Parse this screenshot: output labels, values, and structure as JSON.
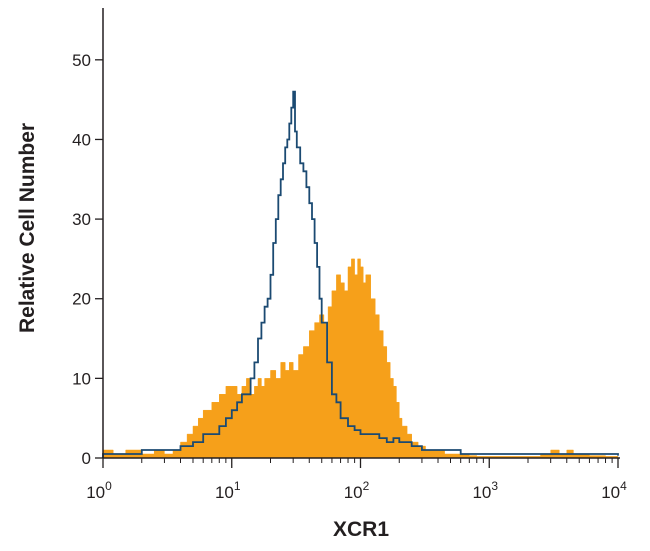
{
  "chart_data": {
    "type": "area",
    "xlabel": "XCR1",
    "ylabel": "Relative Cell Number",
    "x_scale": "log",
    "xlim": [
      1,
      10000
    ],
    "ylim": [
      0,
      55
    ],
    "x_ticks": [
      1,
      10,
      100,
      1000,
      10000
    ],
    "x_tick_labels": [
      {
        "base": "10",
        "exp": "0"
      },
      {
        "base": "10",
        "exp": "1"
      },
      {
        "base": "10",
        "exp": "2"
      },
      {
        "base": "10",
        "exp": "3"
      },
      {
        "base": "10",
        "exp": "4"
      }
    ],
    "y_ticks": [
      0,
      10,
      20,
      30,
      40,
      50
    ],
    "y_tick_labels": [
      "0",
      "10",
      "20",
      "30",
      "40",
      "50"
    ],
    "grid": false,
    "colors": {
      "filled": "#f6a01a",
      "outline": "#1b4a72",
      "axis": "#231f20"
    },
    "series": [
      {
        "style": "filled",
        "color": "#f6a01a",
        "x": [
          1,
          1.2,
          1.5,
          2,
          2.5,
          3,
          3.5,
          4,
          4.5,
          5,
          5.5,
          6,
          7,
          8,
          9,
          10,
          11,
          12,
          13,
          14,
          15,
          16,
          17,
          18,
          20,
          22,
          24,
          26,
          28,
          30,
          33,
          36,
          40,
          44,
          48,
          52,
          56,
          60,
          65,
          70,
          75,
          80,
          85,
          90,
          95,
          100,
          105,
          110,
          120,
          130,
          140,
          150,
          160,
          170,
          180,
          190,
          200,
          210,
          230,
          250,
          280,
          320,
          360,
          400,
          450,
          500,
          600,
          700,
          800,
          1000,
          1500,
          2000,
          2500,
          3000,
          3500,
          4000,
          4500,
          5000,
          6000,
          8000,
          10000
        ],
        "y": [
          1,
          0.5,
          1,
          0.5,
          1,
          0.5,
          1,
          2,
          3,
          4,
          5,
          6,
          7,
          8,
          9,
          9,
          8,
          9,
          10,
          8,
          9,
          10,
          9,
          10,
          11,
          10,
          12,
          11,
          12,
          11,
          13,
          14,
          16,
          17,
          18,
          17,
          19,
          21,
          23,
          22,
          21,
          24,
          25,
          23,
          25,
          24,
          22,
          23,
          20,
          18,
          16,
          14,
          12,
          10,
          9,
          7,
          5,
          4,
          3,
          2,
          1.5,
          1,
          1,
          1,
          0.5,
          0.5,
          0.5,
          0.3,
          0.2,
          0.2,
          0.2,
          0.2,
          0.5,
          1,
          0.5,
          1,
          0.5,
          0.5,
          0.3,
          0.2,
          0.1
        ]
      },
      {
        "style": "outline",
        "color": "#1b4a72",
        "x": [
          1,
          1.5,
          2,
          3,
          4,
          5,
          6,
          7,
          8,
          9,
          10,
          11,
          12,
          13,
          14,
          15,
          16,
          17,
          18,
          19,
          20,
          21,
          22,
          23,
          24,
          25,
          26,
          27,
          28,
          29,
          30,
          31,
          32,
          34,
          36,
          38,
          40,
          42,
          44,
          46,
          48,
          50,
          55,
          60,
          65,
          70,
          80,
          90,
          100,
          120,
          140,
          160,
          180,
          200,
          250,
          300,
          400,
          500,
          600,
          800,
          1000,
          2000,
          3000,
          4000,
          5000,
          10000
        ],
        "y": [
          0.5,
          0.5,
          1,
          1,
          1.5,
          2,
          3,
          3,
          4,
          5,
          6,
          7,
          8,
          8,
          10,
          12,
          15,
          17,
          19,
          20,
          23,
          27,
          30,
          33,
          35,
          37,
          39,
          40,
          42,
          44,
          46,
          41,
          39,
          37,
          36,
          34,
          32,
          30,
          27,
          24,
          20,
          17,
          12,
          8,
          7,
          5,
          4,
          3.5,
          3,
          3,
          2.5,
          2,
          2.5,
          2,
          1.5,
          1,
          1,
          1,
          0.5,
          0.5,
          0.5,
          0.5,
          0.5,
          0.5,
          0.5,
          0.3
        ]
      }
    ]
  }
}
